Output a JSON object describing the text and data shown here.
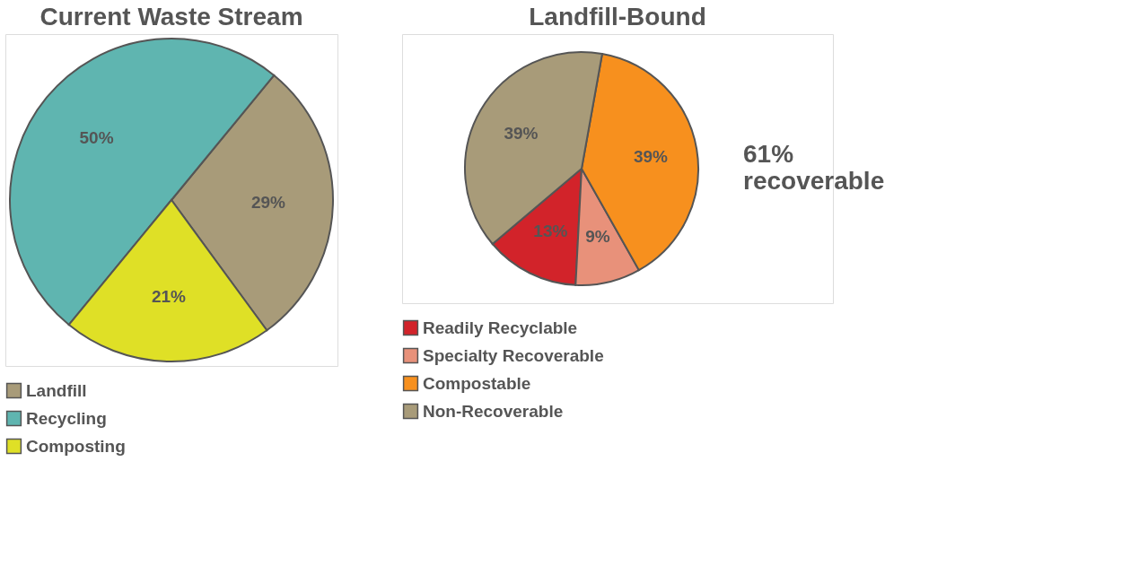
{
  "chart_data": [
    {
      "type": "pie",
      "title": "Current Waste Stream",
      "categories": [
        "Landfill",
        "Recycling",
        "Composting"
      ],
      "values": [
        29,
        50,
        21
      ],
      "colors": [
        "#a89b79",
        "#5fb5b0",
        "#dfe026"
      ],
      "value_labels": [
        "29%",
        "50%",
        "21%"
      ],
      "legend": "bottom"
    },
    {
      "type": "pie",
      "title": "Landfill-Bound",
      "categories": [
        "Readily Recyclable",
        "Specialty Recoverable",
        "Compostable",
        "Non-Recoverable"
      ],
      "values": [
        13,
        9,
        39,
        39
      ],
      "colors": [
        "#d2232a",
        "#e8917a",
        "#f7901e",
        "#a89b79"
      ],
      "value_labels": [
        "13%",
        "9%",
        "39%",
        "39%"
      ],
      "legend": "bottom",
      "annotations": [
        "61% recoverable"
      ]
    }
  ]
}
